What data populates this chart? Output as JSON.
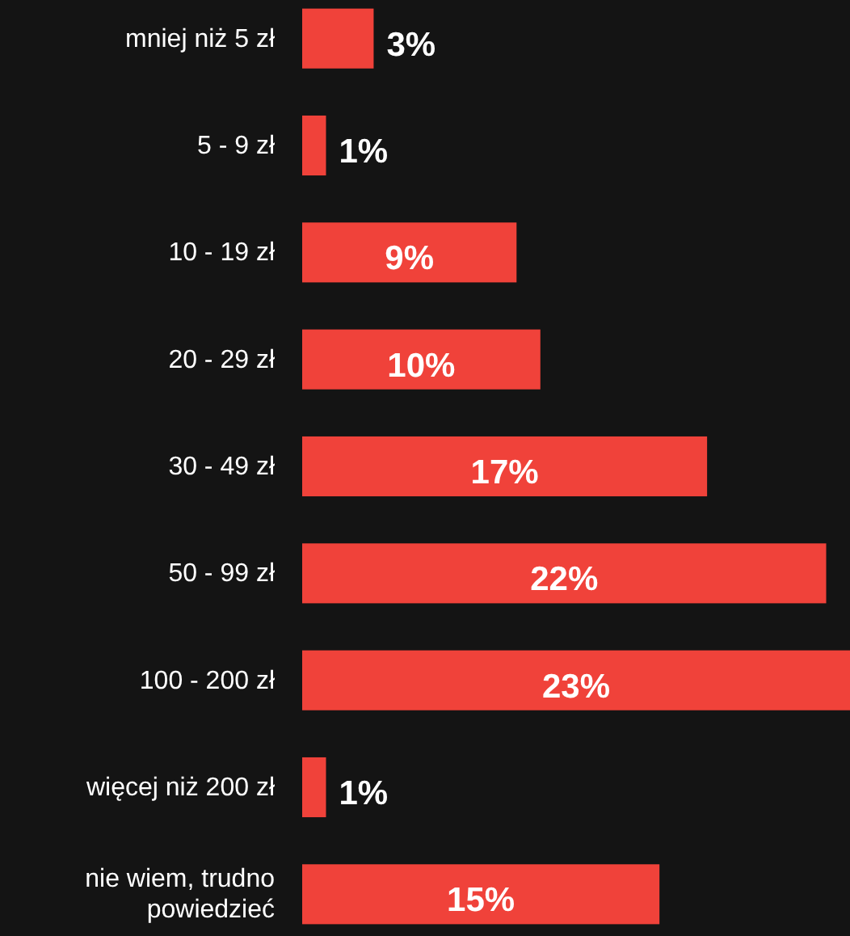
{
  "chart_data": {
    "type": "bar",
    "orientation": "horizontal",
    "categories": [
      "mniej niż 5 zł",
      "5 - 9 zł",
      "10 - 19 zł",
      "20 - 29 zł",
      "30 - 49 zł",
      "50 - 99 zł",
      "100 - 200 zł",
      "więcej niż 200 zł",
      "nie wiem, trudno powiedzieć"
    ],
    "values": [
      3,
      1,
      9,
      10,
      17,
      22,
      23,
      1,
      15
    ],
    "value_labels": [
      "3%",
      "1%",
      "9%",
      "10%",
      "17%",
      "22%",
      "23%",
      "1%",
      "15%"
    ],
    "color": "#f0423a"
  }
}
